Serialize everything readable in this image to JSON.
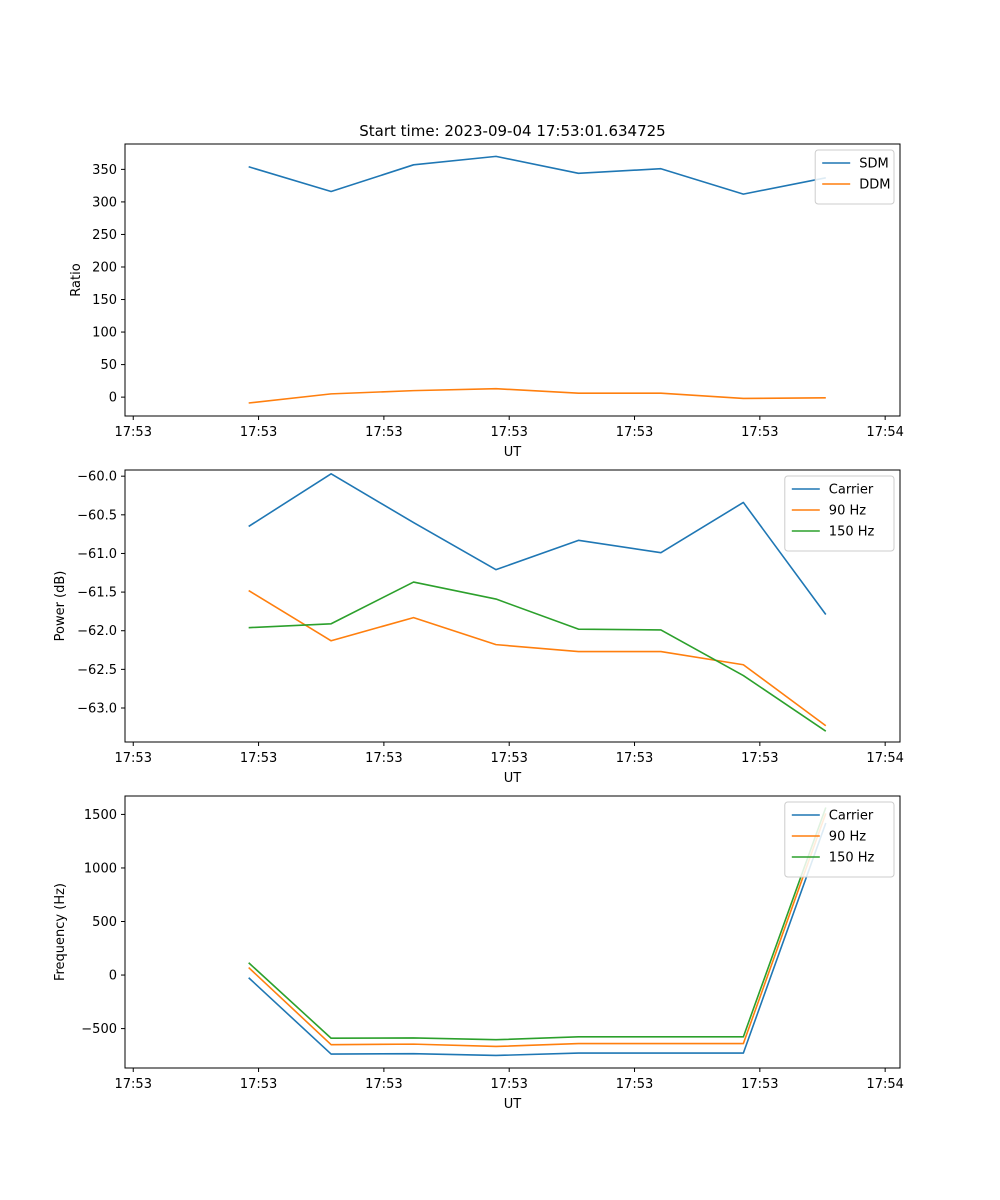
{
  "figure_title": "Start time: 2023-09-04 17:53:01.634725",
  "colors": {
    "blue": "#1f77b4",
    "orange": "#ff7f0e",
    "green": "#2ca02c"
  },
  "chart_data": [
    {
      "type": "line",
      "name": "ratio-chart",
      "title": "Start time: 2023-09-04 17:53:01.634725",
      "xlabel": "UT",
      "ylabel": "Ratio",
      "xlim": [
        -0.5,
        8.9
      ],
      "ylim": [
        -29,
        389
      ],
      "x": [
        1,
        2,
        3,
        4,
        5,
        6,
        7,
        8
      ],
      "xticks": [
        {
          "v": -0.4,
          "label": "17:53"
        },
        {
          "v": 1.12,
          "label": "17:53"
        },
        {
          "v": 2.64,
          "label": "17:53"
        },
        {
          "v": 4.16,
          "label": "17:53"
        },
        {
          "v": 5.68,
          "label": "17:53"
        },
        {
          "v": 7.2,
          "label": "17:53"
        },
        {
          "v": 8.72,
          "label": "17:54"
        }
      ],
      "yticks": [
        {
          "v": 0,
          "label": "0"
        },
        {
          "v": 50,
          "label": "50"
        },
        {
          "v": 100,
          "label": "100"
        },
        {
          "v": 150,
          "label": "150"
        },
        {
          "v": 200,
          "label": "200"
        },
        {
          "v": 250,
          "label": "250"
        },
        {
          "v": 300,
          "label": "300"
        },
        {
          "v": 350,
          "label": "350"
        }
      ],
      "legend": "top-right",
      "series": [
        {
          "name": "SDM",
          "color": "#1f77b4",
          "values": [
            354,
            316,
            357,
            370,
            344,
            351,
            312,
            337
          ]
        },
        {
          "name": "DDM",
          "color": "#ff7f0e",
          "values": [
            -9,
            5,
            10,
            13,
            6,
            6,
            -2,
            -1
          ]
        }
      ]
    },
    {
      "type": "line",
      "name": "power-chart",
      "title": "",
      "xlabel": "UT",
      "ylabel": "Power (dB)",
      "xlim": [
        -0.5,
        8.9
      ],
      "ylim": [
        -63.44,
        -59.92
      ],
      "x": [
        1,
        2,
        3,
        4,
        5,
        6,
        7,
        8
      ],
      "xticks": [
        {
          "v": -0.4,
          "label": "17:53"
        },
        {
          "v": 1.12,
          "label": "17:53"
        },
        {
          "v": 2.64,
          "label": "17:53"
        },
        {
          "v": 4.16,
          "label": "17:53"
        },
        {
          "v": 5.68,
          "label": "17:53"
        },
        {
          "v": 7.2,
          "label": "17:53"
        },
        {
          "v": 8.72,
          "label": "17:54"
        }
      ],
      "yticks": [
        {
          "v": -63.0,
          "label": "−63.0"
        },
        {
          "v": -62.5,
          "label": "−62.5"
        },
        {
          "v": -62.0,
          "label": "−62.0"
        },
        {
          "v": -61.5,
          "label": "−61.5"
        },
        {
          "v": -61.0,
          "label": "−61.0"
        },
        {
          "v": -60.5,
          "label": "−60.5"
        },
        {
          "v": -60.0,
          "label": "−60.0"
        }
      ],
      "legend": "top-right",
      "series": [
        {
          "name": "Carrier",
          "color": "#1f77b4",
          "values": [
            -60.65,
            -59.97,
            -60.6,
            -61.21,
            -60.83,
            -60.99,
            -60.34,
            -61.79
          ]
        },
        {
          "name": "90 Hz",
          "color": "#ff7f0e",
          "values": [
            -61.48,
            -62.13,
            -61.83,
            -62.18,
            -62.27,
            -62.27,
            -62.44,
            -63.23
          ]
        },
        {
          "name": "150 Hz",
          "color": "#2ca02c",
          "values": [
            -61.96,
            -61.91,
            -61.37,
            -61.59,
            -61.98,
            -61.99,
            -62.58,
            -63.3
          ]
        }
      ]
    },
    {
      "type": "line",
      "name": "frequency-chart",
      "title": "",
      "xlabel": "UT",
      "ylabel": "Frequency (Hz)",
      "xlim": [
        -0.5,
        8.9
      ],
      "ylim": [
        -868,
        1672
      ],
      "x": [
        1,
        2,
        3,
        4,
        5,
        6,
        7,
        8
      ],
      "xticks": [
        {
          "v": -0.4,
          "label": "17:53"
        },
        {
          "v": 1.12,
          "label": "17:53"
        },
        {
          "v": 2.64,
          "label": "17:53"
        },
        {
          "v": 4.16,
          "label": "17:53"
        },
        {
          "v": 5.68,
          "label": "17:53"
        },
        {
          "v": 7.2,
          "label": "17:53"
        },
        {
          "v": 8.72,
          "label": "17:54"
        }
      ],
      "yticks": [
        {
          "v": -500,
          "label": "−500"
        },
        {
          "v": 0,
          "label": "0"
        },
        {
          "v": 500,
          "label": "500"
        },
        {
          "v": 1000,
          "label": "1000"
        },
        {
          "v": 1500,
          "label": "1500"
        }
      ],
      "legend": "top-right",
      "series": [
        {
          "name": "Carrier",
          "color": "#1f77b4",
          "values": [
            -25,
            -738,
            -734,
            -751,
            -729,
            -729,
            -729,
            1420
          ]
        },
        {
          "name": "90 Hz",
          "color": "#ff7f0e",
          "values": [
            70,
            -650,
            -645,
            -667,
            -640,
            -640,
            -640,
            1510
          ]
        },
        {
          "name": "150 Hz",
          "color": "#2ca02c",
          "values": [
            115,
            -590,
            -587,
            -604,
            -577,
            -577,
            -577,
            1565
          ]
        }
      ]
    }
  ]
}
